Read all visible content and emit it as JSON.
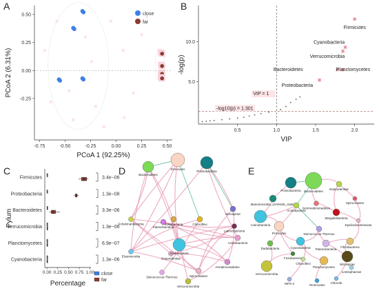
{
  "colors": {
    "close": "#3f7fe6",
    "far": "#8b3a33",
    "vip_point": "#f2c3c8",
    "threshold": "#9a5a50",
    "edge": "#e89ab4",
    "edge_green": "#7ec8a6"
  },
  "panels": [
    "A",
    "B",
    "C",
    "D",
    "E"
  ],
  "chart_data": [
    {
      "panel": "A",
      "type": "scatter",
      "xlabel": "PCoA 1 (92.25%)",
      "ylabel": "PCoA 2 (6.31%)",
      "xlim": [
        -0.8,
        0.55
      ],
      "ylim": [
        -0.62,
        0.58
      ],
      "xticks": [
        "-0.75",
        "-0.50",
        "-0.25",
        "0.00",
        "0.25",
        "0.50"
      ],
      "yticks": [
        "0.50",
        "0.25",
        "0.00",
        "-0.25"
      ],
      "legend": [
        "close",
        "far"
      ],
      "legend_position": "top-right",
      "series": [
        {
          "name": "close",
          "points": [
            [
              -0.33,
              0.53
            ],
            [
              -0.32,
              0.52
            ],
            [
              -0.42,
              0.38
            ],
            [
              -0.41,
              0.37
            ],
            [
              -0.56,
              -0.08
            ],
            [
              -0.55,
              -0.09
            ],
            [
              -0.33,
              -0.07
            ],
            [
              -0.32,
              -0.08
            ]
          ]
        },
        {
          "name": "far",
          "points": [
            [
              0.44,
              0.16
            ],
            [
              0.45,
              0.15
            ],
            [
              0.44,
              0.05
            ],
            [
              0.45,
              0.04
            ],
            [
              0.44,
              -0.02
            ],
            [
              0.45,
              -0.03
            ],
            [
              0.44,
              -0.06
            ],
            [
              0.45,
              -0.07
            ]
          ]
        }
      ]
    },
    {
      "panel": "B",
      "type": "scatter",
      "xlabel": "VIP",
      "ylabel": "-log(p)",
      "xlim": [
        0.0,
        2.25
      ],
      "ylim": [
        -0.3,
        14.5
      ],
      "xticks": [
        "0.5",
        "1.0",
        "1.5",
        "2.0"
      ],
      "yticks": [
        "5.0",
        "10.0"
      ],
      "vline": 1.0,
      "hline": 1.301,
      "vline_label": "VIP = 1",
      "hline_label": "-log10(p) = 1.301",
      "labeled_points": [
        {
          "name": "Firmicutes",
          "x": 2.0,
          "y": 12.8
        },
        {
          "name": "Cyanobacteria",
          "x": 1.88,
          "y": 9.3
        },
        {
          "name": "Verrucomicrobia",
          "x": 1.85,
          "y": 8.8
        },
        {
          "name": "Bacteroidetes",
          "x": 1.78,
          "y": 6.5
        },
        {
          "name": "Planctomycetes",
          "x": 1.85,
          "y": 6.5
        },
        {
          "name": "Proteobacteria",
          "x": 1.55,
          "y": 5.2
        }
      ],
      "other_points": [
        [
          0.05,
          0.0
        ],
        [
          0.1,
          0.05
        ],
        [
          0.15,
          0.1
        ],
        [
          0.2,
          0.15
        ],
        [
          0.3,
          0.25
        ],
        [
          0.4,
          0.35
        ],
        [
          0.5,
          0.45
        ],
        [
          0.58,
          0.55
        ],
        [
          0.65,
          0.7
        ],
        [
          0.72,
          0.85
        ],
        [
          0.8,
          1.0
        ],
        [
          0.9,
          1.2
        ],
        [
          1.05,
          1.5
        ],
        [
          1.12,
          1.9
        ],
        [
          1.18,
          2.4
        ],
        [
          1.25,
          2.8
        ],
        [
          1.3,
          3.1
        ]
      ]
    },
    {
      "panel": "C",
      "type": "box",
      "xlabel": "Percentage",
      "ylabel": "Pylum",
      "xlim": [
        -0.05,
        1.02
      ],
      "xticks": [
        "0.00",
        "0.25",
        "0.50",
        "0.75",
        "1.00"
      ],
      "legend": [
        "close",
        "far"
      ],
      "legend_position": "bottom-right",
      "categories": [
        "Firmicutes",
        "Proteobacteria",
        "Bacteroidetes",
        "Verrucomicrobia",
        "Planctomycetes",
        "Cyanobacteria"
      ],
      "pvalues": [
        "3.4e−06",
        "1.3e−08",
        "3.3e−06",
        "1.3e−06",
        "6.9e−07",
        "1.3e−06"
      ],
      "boxes": [
        {
          "close": [
            0.0,
            0.0,
            0.0,
            0.0,
            0.0
          ],
          "far": [
            0.73,
            0.8,
            0.86,
            0.92,
            0.96
          ]
        },
        {
          "close": [
            0.0,
            0.0,
            0.0,
            0.0,
            0.0
          ],
          "far": [
            0.62,
            0.66,
            0.68,
            0.7,
            0.74
          ]
        },
        {
          "close": [
            0.0,
            0.0,
            0.01,
            0.01,
            0.02
          ],
          "far": [
            0.05,
            0.1,
            0.14,
            0.2,
            0.3
          ]
        },
        {
          "close": [
            0.0,
            0.0,
            0.0,
            0.0,
            0.0
          ],
          "far": [
            0.0,
            0.0,
            0.01,
            0.01,
            0.02
          ]
        },
        {
          "close": [
            0.0,
            0.0,
            0.0,
            0.0,
            0.0
          ],
          "far": [
            0.0,
            0.0,
            0.0,
            0.01,
            0.01
          ]
        },
        {
          "close": [
            0.0,
            0.0,
            0.0,
            0.0,
            0.0
          ],
          "far": [
            0.0,
            0.0,
            0.0,
            0.0,
            0.0
          ]
        }
      ]
    },
    {
      "panel": "D",
      "type": "network",
      "nodes": [
        {
          "label": "Firmicutes",
          "color": "#f9d5c3"
        },
        {
          "label": "Proteobacteria",
          "color": "#137f86"
        },
        {
          "label": "Bacteroidetes",
          "color": "#7ed957"
        },
        {
          "label": "Chloroflexi",
          "color": "#e4b422"
        },
        {
          "label": "Nitrospirae",
          "color": "#7b6fd0"
        },
        {
          "label": "Schekmanbacteria",
          "color": "#c3d642"
        },
        {
          "label": "Patescibacteria",
          "color": "#d07de3"
        },
        {
          "label": "Rokubacteria",
          "color": "#d4a94a"
        },
        {
          "label": "Elusimicrobia",
          "color": "#6ec8f0"
        },
        {
          "label": "Dependentiae",
          "color": "#e3b0cf"
        },
        {
          "label": "Acidobacteria",
          "color": "#3fc4e0"
        },
        {
          "label": "Actinobacteria",
          "color": "#e6a0cf"
        },
        {
          "label": "Latescibacteria",
          "color": "#7b2a52"
        },
        {
          "label": "Spirochaetes",
          "color": "#e7b3c6"
        },
        {
          "label": "Deinococcus-Thermus",
          "color": "#e1a8e3"
        },
        {
          "label": "Verrucomicrobia",
          "color": "#b5c23a"
        },
        {
          "label": "Armatimonadetes",
          "color": "#d18bd0"
        }
      ]
    },
    {
      "panel": "E",
      "type": "network",
      "nodes": [
        {
          "label": "Proteobacteria",
          "color": "#137f86"
        },
        {
          "label": "Bacteroidetes",
          "color": "#7ed957"
        },
        {
          "label": "Dependentiae",
          "color": "#b2d84a"
        },
        {
          "label": "Marinimicrobia_(SAR406_clade)",
          "color": "#1c8a78"
        },
        {
          "label": "Acidobacteria",
          "color": "#b2d84a"
        },
        {
          "label": "Gemmatimonadetes",
          "color": "#e57373"
        },
        {
          "label": "Spirochaetes",
          "color": "#e05a6f"
        },
        {
          "label": "Margulisbacteria",
          "color": "#c1121f"
        },
        {
          "label": "Actinobacteria",
          "color": "#3fc4e0"
        },
        {
          "label": "Epsilonbacteraeota",
          "color": "#e7b3c6"
        },
        {
          "label": "Firmicutes",
          "color": "#f9d5c3"
        },
        {
          "label": "Deinococcus-Thermus",
          "color": "#b29ee6"
        },
        {
          "label": "Cyanobacteria",
          "color": "#3fc4e0"
        },
        {
          "label": "Patescibacteria",
          "color": "#d2b4e6"
        },
        {
          "label": "Fibrobacteres",
          "color": "#e3c16f"
        },
        {
          "label": "Dadabacteria",
          "color": "#6fbe49"
        },
        {
          "label": "Fusobacteria",
          "color": "#3a8a3a"
        },
        {
          "label": "Chloroflexi",
          "color": "#c5e08f"
        },
        {
          "label": "Planctomycetes",
          "color": "#e6b85a"
        },
        {
          "label": "Nitrospirae",
          "color": "#5a4a1c"
        },
        {
          "label": "Lentisphaerae",
          "color": "#9ed1e6"
        },
        {
          "label": "Verrucomicrobia",
          "color": "#c4c43a"
        },
        {
          "label": "WPS-2",
          "color": "#9ab0e0"
        },
        {
          "label": "Tenericutes",
          "color": "#3f9fd8"
        },
        {
          "label": "Chlorobi",
          "color": "#7eb8e6"
        }
      ]
    }
  ]
}
